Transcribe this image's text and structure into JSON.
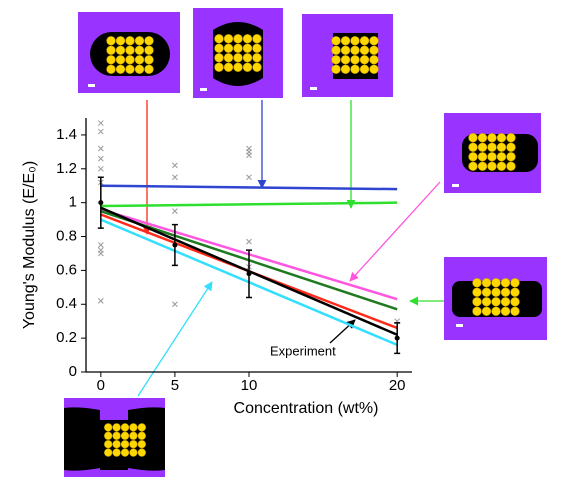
{
  "chart_data": {
    "type": "line",
    "xlabel": "Concentration (wt%)",
    "ylabel": "Young's Modulus (E/E₀)",
    "annotation": "Experiment",
    "xlim": [
      -1,
      21
    ],
    "ylim": [
      0,
      1.5
    ],
    "xticks": [
      0,
      5,
      10,
      20
    ],
    "yticks": [
      0,
      0.2,
      0.4,
      0.6,
      0.8,
      1,
      1.2,
      1.4
    ],
    "series": [
      {
        "color": "#2f45d0",
        "x": [
          0,
          20
        ],
        "values": [
          1.1,
          1.08
        ]
      },
      {
        "color": "#2ee02e",
        "x": [
          0,
          20
        ],
        "values": [
          0.98,
          1.0
        ]
      },
      {
        "color": "#ff55e0",
        "x": [
          0,
          20
        ],
        "values": [
          0.96,
          0.43
        ]
      },
      {
        "color": "#1f7a1f",
        "x": [
          0,
          20
        ],
        "values": [
          0.95,
          0.37
        ]
      },
      {
        "color": "#ff2a1a",
        "x": [
          0,
          20
        ],
        "values": [
          0.93,
          0.26
        ]
      },
      {
        "color": "#000000",
        "x": [
          0,
          20
        ],
        "values": [
          0.97,
          0.22
        ]
      },
      {
        "color": "#33dfff",
        "x": [
          0,
          20
        ],
        "values": [
          0.9,
          0.16
        ]
      }
    ],
    "experiment": {
      "color": "#000000",
      "x": [
        0,
        5,
        10,
        20
      ],
      "values": [
        1.0,
        0.75,
        0.58,
        0.2
      ],
      "errors": [
        0.15,
        0.12,
        0.14,
        0.09
      ]
    },
    "crosses": {
      "color": "#999999",
      "x": [
        0,
        0,
        0,
        0,
        0,
        0,
        0,
        0,
        0,
        0,
        5,
        5,
        5,
        5,
        10,
        10,
        10,
        10,
        10,
        10,
        20
      ],
      "values": [
        1.47,
        1.42,
        1.32,
        1.26,
        1.2,
        1.12,
        0.75,
        0.72,
        0.7,
        0.42,
        1.22,
        1.15,
        0.95,
        0.4,
        1.32,
        1.3,
        1.28,
        1.15,
        0.77,
        0.62,
        0.3
      ]
    }
  }
}
